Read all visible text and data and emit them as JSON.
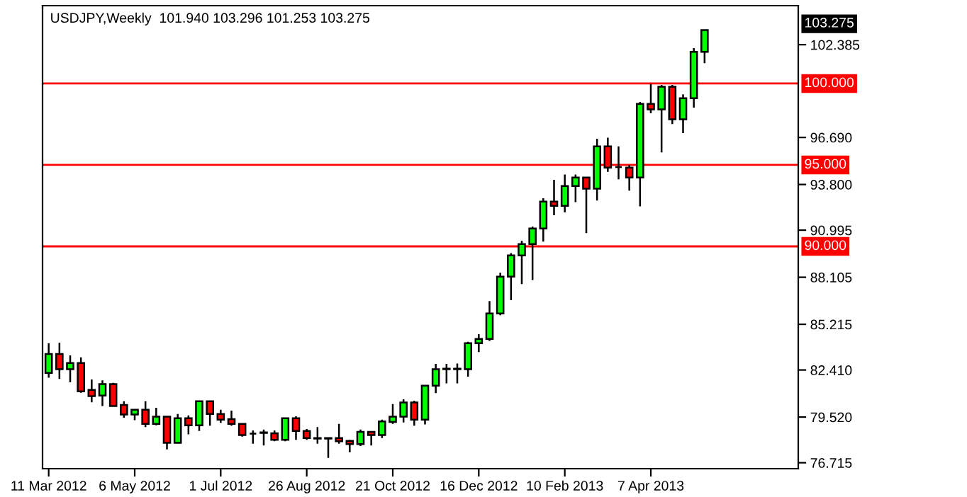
{
  "chart_data": {
    "type": "candlestick",
    "title": "USDJPY,Weekly  101.940 103.296 101.253 103.275",
    "x": [
      "2012-03-11",
      "2012-03-18",
      "2012-03-25",
      "2012-04-01",
      "2012-04-08",
      "2012-04-15",
      "2012-04-22",
      "2012-04-29",
      "2012-05-06",
      "2012-05-13",
      "2012-05-20",
      "2012-05-27",
      "2012-06-03",
      "2012-06-10",
      "2012-06-17",
      "2012-06-24",
      "2012-07-01",
      "2012-07-08",
      "2012-07-15",
      "2012-07-22",
      "2012-07-29",
      "2012-08-05",
      "2012-08-12",
      "2012-08-19",
      "2012-08-26",
      "2012-09-02",
      "2012-09-09",
      "2012-09-16",
      "2012-09-23",
      "2012-09-30",
      "2012-10-07",
      "2012-10-14",
      "2012-10-21",
      "2012-10-28",
      "2012-11-04",
      "2012-11-11",
      "2012-11-18",
      "2012-11-25",
      "2012-12-02",
      "2012-12-09",
      "2012-12-16",
      "2012-12-23",
      "2012-12-30",
      "2013-01-06",
      "2013-01-13",
      "2013-01-20",
      "2013-01-27",
      "2013-02-03",
      "2013-02-10",
      "2013-02-17",
      "2013-02-24",
      "2013-03-03",
      "2013-03-10",
      "2013-03-17",
      "2013-03-24",
      "2013-03-31",
      "2013-04-07",
      "2013-04-14",
      "2013-04-21",
      "2013-04-28",
      "2013-05-05",
      "2013-05-12"
    ],
    "xlim": [
      "2012-03-07",
      "2013-07-12"
    ],
    "xticks": [
      {
        "value": "2012-03-11",
        "label": "11 Mar 2012"
      },
      {
        "value": "2012-05-06",
        "label": "6 May 2012"
      },
      {
        "value": "2012-07-01",
        "label": "1 Jul 2012"
      },
      {
        "value": "2012-08-26",
        "label": "26 Aug 2012"
      },
      {
        "value": "2012-10-21",
        "label": "21 Oct 2012"
      },
      {
        "value": "2012-12-16",
        "label": "16 Dec 2012"
      },
      {
        "value": "2013-02-10",
        "label": "10 Feb 2013"
      },
      {
        "value": "2013-04-07",
        "label": "7 Apr 2013"
      }
    ],
    "ohlc": [
      [
        82.23,
        84.06,
        81.94,
        83.39
      ],
      [
        83.39,
        84.09,
        81.86,
        82.46
      ],
      [
        82.46,
        83.3,
        81.65,
        82.84
      ],
      [
        82.84,
        83.19,
        81.01,
        81.1
      ],
      [
        81.19,
        81.83,
        80.43,
        80.81
      ],
      [
        80.84,
        81.77,
        80.2,
        81.54
      ],
      [
        81.54,
        81.62,
        80.15,
        80.2
      ],
      [
        80.26,
        80.49,
        79.48,
        79.68
      ],
      [
        79.68,
        79.99,
        79.33,
        79.97
      ],
      [
        79.97,
        80.49,
        78.9,
        79.1
      ],
      [
        79.1,
        80.09,
        79.01,
        79.54
      ],
      [
        79.54,
        79.57,
        77.54,
        77.94
      ],
      [
        77.94,
        79.71,
        77.88,
        79.45
      ],
      [
        79.45,
        79.62,
        78.46,
        79.01
      ],
      [
        79.01,
        80.49,
        78.67,
        80.49
      ],
      [
        80.49,
        80.52,
        78.99,
        79.71
      ],
      [
        79.71,
        79.97,
        79.16,
        79.36
      ],
      [
        79.39,
        79.91,
        78.99,
        79.1
      ],
      [
        79.1,
        79.13,
        78.32,
        78.41
      ],
      [
        78.5,
        78.7,
        77.88,
        78.5
      ],
      [
        78.55,
        78.75,
        77.77,
        78.58
      ],
      [
        78.52,
        78.7,
        78.03,
        78.12
      ],
      [
        78.12,
        79.48,
        78.03,
        79.45
      ],
      [
        79.45,
        79.57,
        78.12,
        78.67
      ],
      [
        78.67,
        78.78,
        78.12,
        78.23
      ],
      [
        78.2,
        78.9,
        77.88,
        78.23
      ],
      [
        78.23,
        78.26,
        77.01,
        78.2
      ],
      [
        78.23,
        79.1,
        77.88,
        78.03
      ],
      [
        78.06,
        78.12,
        77.36,
        77.86
      ],
      [
        77.86,
        78.75,
        77.74,
        78.61
      ],
      [
        78.61,
        78.64,
        77.77,
        78.41
      ],
      [
        78.41,
        79.36,
        78.23,
        79.25
      ],
      [
        79.22,
        80.32,
        79.1,
        79.54
      ],
      [
        79.54,
        80.61,
        79.19,
        80.41
      ],
      [
        80.41,
        80.52,
        78.99,
        79.36
      ],
      [
        79.36,
        81.48,
        79.07,
        81.45
      ],
      [
        81.45,
        82.78,
        80.99,
        82.46
      ],
      [
        82.46,
        82.78,
        81.59,
        82.49
      ],
      [
        82.49,
        82.81,
        81.59,
        82.46
      ],
      [
        82.46,
        84.14,
        82.0,
        84.06
      ],
      [
        84.06,
        84.61,
        83.51,
        84.32
      ],
      [
        84.32,
        86.64,
        84.2,
        85.88
      ],
      [
        85.88,
        88.38,
        85.77,
        88.14
      ],
      [
        88.14,
        89.59,
        86.7,
        89.45
      ],
      [
        89.45,
        90.35,
        87.68,
        90.14
      ],
      [
        90.14,
        91.22,
        87.94,
        91.1
      ],
      [
        91.1,
        92.96,
        90.29,
        92.75
      ],
      [
        92.75,
        94.09,
        91.91,
        92.49
      ],
      [
        92.49,
        94.41,
        92.09,
        93.71
      ],
      [
        93.71,
        94.41,
        92.72,
        94.23
      ],
      [
        94.23,
        94.26,
        90.81,
        93.54
      ],
      [
        93.54,
        96.61,
        92.81,
        96.14
      ],
      [
        96.14,
        96.67,
        94.58,
        94.84
      ],
      [
        94.87,
        96.14,
        94.12,
        94.87
      ],
      [
        94.84,
        94.99,
        93.42,
        94.23
      ],
      [
        94.23,
        98.87,
        92.46,
        98.75
      ],
      [
        98.75,
        99.97,
        98.17,
        98.41
      ],
      [
        98.41,
        99.91,
        95.77,
        99.8
      ],
      [
        99.8,
        99.91,
        97.51,
        97.8
      ],
      [
        97.8,
        99.33,
        96.96,
        99.1
      ],
      [
        99.1,
        102.17,
        98.52,
        101.94
      ],
      [
        101.94,
        103.296,
        101.253,
        103.275
      ]
    ],
    "colors": [
      "#00ff00",
      "#ff0000",
      "#00ff00",
      "#ff0000",
      "#ff0000",
      "#00ff00",
      "#ff0000",
      "#ff0000",
      "#00ff00",
      "#ff0000",
      "#00ff00",
      "#ff0000",
      "#00ff00",
      "#ff0000",
      "#00ff00",
      "#ff0000",
      "#ff0000",
      "#ff0000",
      "#ff0000",
      "#000000",
      "#000000",
      "#ff0000",
      "#00ff00",
      "#ff0000",
      "#ff0000",
      "#000000",
      "#000000",
      "#ff0000",
      "#ff0000",
      "#00ff00",
      "#ff0000",
      "#00ff00",
      "#00ff00",
      "#00ff00",
      "#ff0000",
      "#00ff00",
      "#00ff00",
      "#000000",
      "#000000",
      "#00ff00",
      "#00ff00",
      "#00ff00",
      "#00ff00",
      "#00ff00",
      "#00ff00",
      "#00ff00",
      "#00ff00",
      "#ff0000",
      "#00ff00",
      "#00ff00",
      "#ff0000",
      "#00ff00",
      "#ff0000",
      "#000000",
      "#ff0000",
      "#00ff00",
      "#ff0000",
      "#00ff00",
      "#ff0000",
      "#00ff00",
      "#00ff00",
      "#00ff00"
    ],
    "ylim": [
      76.35,
      104.78
    ],
    "yticks": [
      {
        "value": 76.715,
        "label": "76.715"
      },
      {
        "value": 79.52,
        "label": "79.520"
      },
      {
        "value": 82.41,
        "label": "82.410"
      },
      {
        "value": 85.215,
        "label": "85.215"
      },
      {
        "value": 88.105,
        "label": "88.105"
      },
      {
        "value": 90.995,
        "label": "90.995"
      },
      {
        "value": 93.8,
        "label": "93.800"
      },
      {
        "value": 96.69,
        "label": "96.690"
      },
      {
        "value": 102.385,
        "label": "102.385"
      }
    ],
    "ref_lines": [
      {
        "axis": "y",
        "value": 100,
        "label": "100.000",
        "color": "#ff0000"
      },
      {
        "axis": "y",
        "value": 95,
        "label": "95.000",
        "color": "#ff0000"
      },
      {
        "axis": "y",
        "value": 90,
        "label": "90.000",
        "color": "#ff0000"
      }
    ],
    "annotations": [
      "103.275"
    ]
  }
}
